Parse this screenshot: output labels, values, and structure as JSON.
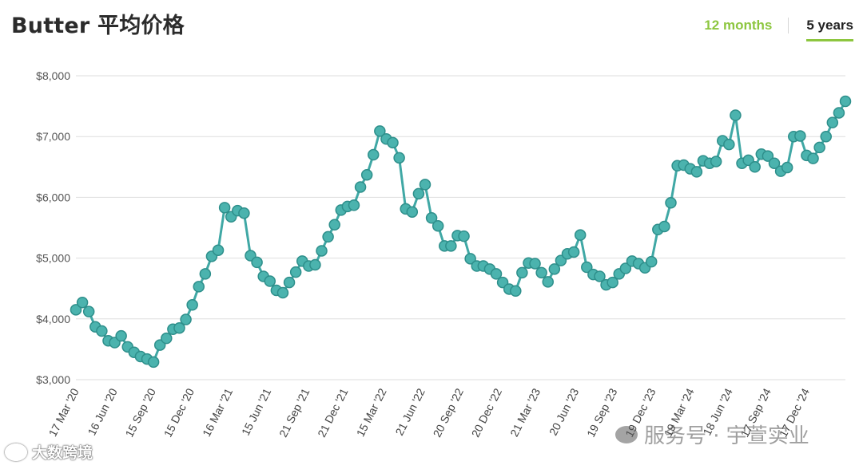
{
  "header": {
    "title": "Butter 平均价格",
    "tab_12_months": "12 months",
    "tab_5_years": "5 years"
  },
  "watermarks": {
    "left_text": "大数跨境",
    "right_text": "服务号 · 宇萱实业"
  },
  "colors": {
    "line": "#40a8a5",
    "marker_fill": "#4bb3ae",
    "marker_stroke": "#2e8f8b",
    "grid": "#dedede",
    "tab_accent": "#8dc63f"
  },
  "chart_data": {
    "type": "line",
    "title": "Butter 平均价格",
    "xlabel": "",
    "ylabel": "",
    "ylim": [
      3000,
      8000
    ],
    "yticks": [
      3000,
      4000,
      5000,
      6000,
      7000,
      8000
    ],
    "ytick_labels": [
      "$3,000",
      "$4,000",
      "$5,000",
      "$6,000",
      "$7,000",
      "$8,000"
    ],
    "xtick_labels": [
      "17 Mar '20",
      "16 Jun '20",
      "15 Sep '20",
      "15 Dec '20",
      "16 Mar '21",
      "15 Jun '21",
      "21 Sep '21",
      "21 Dec '21",
      "15 Mar '22",
      "21 Jun '22",
      "20 Sep '22",
      "20 Dec '22",
      "21 Mar '23",
      "20 Jun '23",
      "19 Sep '23",
      "19 Dec '23",
      "19 Mar '24",
      "18 Jun '24",
      "17 Sep '24",
      "17 Dec '24"
    ],
    "grid": true,
    "legend": "none",
    "series": [
      {
        "values": [
          4150,
          4270,
          4120,
          3870,
          3800,
          3640,
          3610,
          3720,
          3540,
          3450,
          3380,
          3340,
          3290,
          3570,
          3680,
          3830,
          3850,
          3990,
          4230,
          4530,
          4740,
          5030,
          5130,
          5830,
          5680,
          5780,
          5740,
          5040,
          4930,
          4700,
          4620,
          4470,
          4430,
          4600,
          4770,
          4950,
          4870,
          4890,
          5120,
          5350,
          5550,
          5790,
          5850,
          5870,
          6170,
          6370,
          6700,
          7090,
          6960,
          6900,
          6650,
          5810,
          5760,
          6060,
          6210,
          5660,
          5530,
          5200,
          5200,
          5370,
          5360,
          4990,
          4870,
          4870,
          4820,
          4740,
          4600,
          4490,
          4460,
          4760,
          4920,
          4910,
          4760,
          4610,
          4820,
          4960,
          5070,
          5100,
          5380,
          4850,
          4730,
          4700,
          4560,
          4600,
          4740,
          4830,
          4950,
          4910,
          4840,
          4940,
          5470,
          5520,
          5910,
          6520,
          6530,
          6470,
          6420,
          6600,
          6560,
          6590,
          6930,
          6870,
          7350,
          6560,
          6610,
          6500,
          6710,
          6680,
          6560,
          6430,
          6490,
          7000,
          7010,
          6690,
          6640,
          6820,
          7000,
          7230,
          7390,
          7580
        ]
      }
    ]
  }
}
